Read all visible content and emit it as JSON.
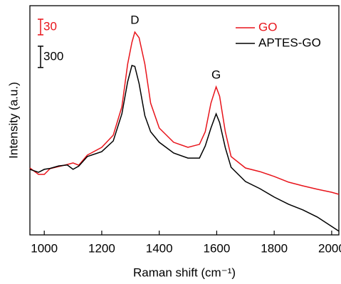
{
  "chart_data": {
    "type": "line",
    "x_label": "Raman shift (cm⁻¹)",
    "y_label": "Intensity (a.u.)",
    "x": [
      950,
      980,
      1000,
      1020,
      1050,
      1080,
      1100,
      1120,
      1150,
      1200,
      1240,
      1270,
      1290,
      1305,
      1315,
      1330,
      1350,
      1370,
      1400,
      1450,
      1500,
      1540,
      1560,
      1580,
      1598,
      1610,
      1630,
      1650,
      1700,
      1750,
      1800,
      1850,
      1900,
      1950,
      2000,
      2025
    ],
    "series": [
      {
        "name": "GO",
        "color": "#e8141b",
        "values": [
          29.2,
          26.4,
          26.4,
          28.9,
          29.8,
          30.7,
          31.4,
          30.4,
          34.8,
          38.2,
          43.5,
          55.9,
          74.5,
          84,
          88.5,
          86,
          74.5,
          57.5,
          46.6,
          40.4,
          38.2,
          39.5,
          45,
          57.5,
          64.6,
          60.5,
          45,
          34.2,
          29.2,
          27.6,
          25.5,
          23,
          21.4,
          19.9,
          18.6,
          17.7
        ]
      },
      {
        "name": "APTES-GO",
        "color": "#000000",
        "values": [
          28.6,
          27.3,
          28.6,
          29,
          30.1,
          30.5,
          28.6,
          30,
          34.2,
          36.3,
          41,
          52.8,
          66.8,
          73.9,
          73.5,
          66,
          52,
          45,
          40.4,
          35.7,
          33.5,
          33.5,
          38.8,
          46.6,
          52.8,
          49,
          38,
          29.5,
          23.3,
          20.2,
          16.5,
          13.4,
          10.9,
          7.8,
          3.7,
          1.6
        ]
      }
    ],
    "annotations": [
      {
        "text": "D",
        "x": 1315
      },
      {
        "text": "G",
        "x": 1598
      }
    ],
    "scale_bars": [
      {
        "label": "30",
        "length": 6.8,
        "color": "#e8141b"
      },
      {
        "label": "300",
        "length": 9.3,
        "color": "#000000"
      }
    ],
    "xlim": [
      950,
      2025
    ],
    "xticks": [
      1000,
      1200,
      1400,
      1600,
      1800,
      2000
    ],
    "ylim": [
      0,
      100
    ],
    "legend": "top-right"
  }
}
